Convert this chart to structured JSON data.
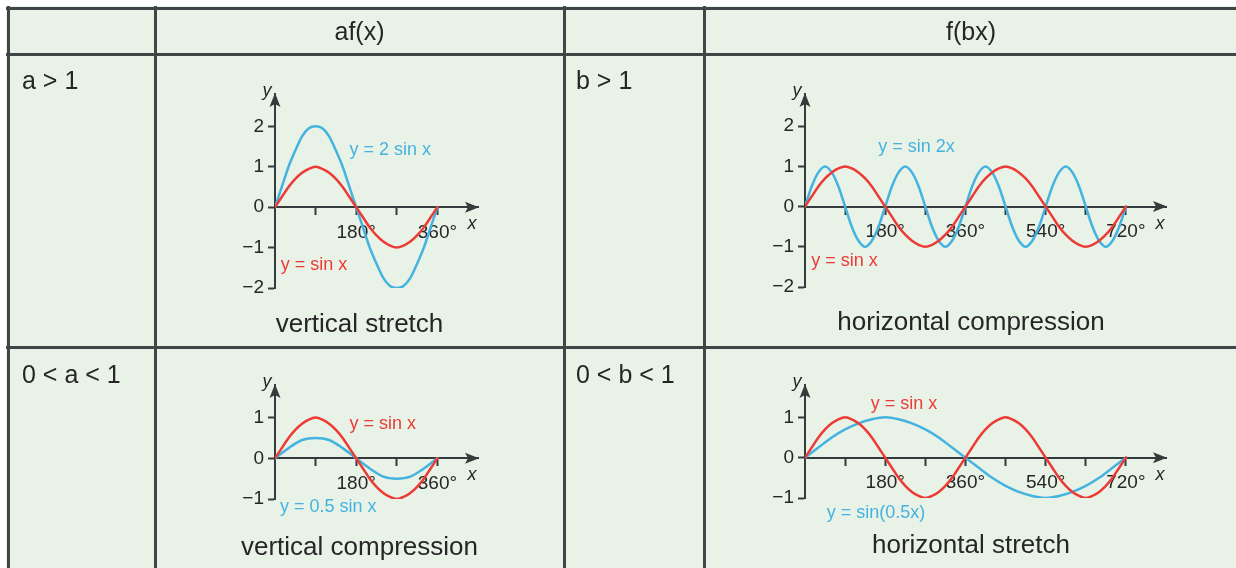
{
  "chart_data": [
    {
      "type": "line",
      "title": "af(x)",
      "annotations": [
        "a > 1",
        "vertical stretch"
      ],
      "xlabel": "x",
      "ylabel": "y",
      "x": [
        0,
        15,
        30,
        45,
        60,
        75,
        90,
        105,
        120,
        135,
        150,
        165,
        180,
        195,
        210,
        225,
        240,
        255,
        270,
        285,
        300,
        315,
        330,
        345,
        360
      ],
      "series": [
        {
          "name": "y = sin x",
          "color": "#ec3b35",
          "values": [
            0,
            0.25,
            0.5,
            0.7,
            0.85,
            0.95,
            1,
            0.95,
            0.85,
            0.7,
            0.5,
            0.25,
            0,
            -0.25,
            -0.5,
            -0.7,
            -0.85,
            -0.95,
            -1,
            -0.95,
            -0.85,
            -0.7,
            -0.5,
            -0.25,
            0
          ]
        },
        {
          "name": "y = 2 sin x",
          "color": "#45b3e0",
          "values": [
            0,
            0.5,
            1,
            1.4,
            1.75,
            1.95,
            2,
            1.95,
            1.75,
            1.4,
            1,
            0.5,
            0,
            -0.5,
            -1,
            -1.4,
            -1.75,
            -1.95,
            -2,
            -1.95,
            -1.75,
            -1.4,
            -1,
            -0.5,
            0
          ]
        }
      ],
      "xlim": [
        0,
        450
      ],
      "ylim": [
        -2,
        2.8
      ],
      "xticks": [
        {
          "value": 90,
          "label": null
        },
        {
          "value": 180,
          "label": "180°"
        },
        {
          "value": 270,
          "label": null
        },
        {
          "value": 360,
          "label": "360°"
        }
      ],
      "yticks": [
        -2,
        -1,
        0,
        1,
        2
      ]
    },
    {
      "type": "line",
      "title": "f(bx)",
      "annotations": [
        "b > 1",
        "horizontal compression"
      ],
      "xlabel": "x",
      "ylabel": "y",
      "x": [
        0,
        15,
        30,
        45,
        60,
        75,
        90,
        105,
        120,
        135,
        150,
        165,
        180,
        195,
        210,
        225,
        240,
        255,
        270,
        285,
        300,
        315,
        330,
        345,
        360,
        375,
        390,
        405,
        420,
        435,
        450,
        465,
        480,
        495,
        510,
        525,
        540,
        555,
        570,
        585,
        600,
        615,
        630,
        645,
        660,
        675,
        690,
        705,
        720
      ],
      "series": [
        {
          "name": "y = sin x",
          "color": "#ec3b35",
          "values": [
            0,
            0.25,
            0.5,
            0.7,
            0.85,
            0.95,
            1,
            0.95,
            0.85,
            0.7,
            0.5,
            0.25,
            0,
            -0.25,
            -0.5,
            -0.7,
            -0.85,
            -0.95,
            -1,
            -0.95,
            -0.85,
            -0.7,
            -0.5,
            -0.25,
            0,
            0.25,
            0.5,
            0.7,
            0.85,
            0.95,
            1,
            0.95,
            0.85,
            0.7,
            0.5,
            0.25,
            0,
            -0.25,
            -0.5,
            -0.7,
            -0.85,
            -0.95,
            -1,
            -0.95,
            -0.85,
            -0.7,
            -0.5,
            -0.25,
            0
          ]
        },
        {
          "name": "y = sin 2x",
          "color": "#45b3e0",
          "values": [
            0,
            0.5,
            0.85,
            1,
            0.85,
            0.5,
            0,
            -0.5,
            -0.85,
            -1,
            -0.85,
            -0.5,
            0,
            0.5,
            0.85,
            1,
            0.85,
            0.5,
            0,
            -0.5,
            -0.85,
            -1,
            -0.85,
            -0.5,
            0,
            0.5,
            0.85,
            1,
            0.85,
            0.5,
            0,
            -0.5,
            -0.85,
            -1,
            -0.85,
            -0.5,
            0,
            0.5,
            0.85,
            1,
            0.85,
            0.5,
            0,
            -0.5,
            -0.85,
            -1,
            -0.85,
            -0.5,
            0
          ]
        }
      ],
      "xlim": [
        0,
        810
      ],
      "ylim": [
        -2,
        2.8
      ],
      "xticks": [
        {
          "value": 90,
          "label": null
        },
        {
          "value": 180,
          "label": "180°"
        },
        {
          "value": 270,
          "label": null
        },
        {
          "value": 360,
          "label": "360°"
        },
        {
          "value": 450,
          "label": null
        },
        {
          "value": 540,
          "label": "540°"
        },
        {
          "value": 630,
          "label": null
        },
        {
          "value": 720,
          "label": "720°"
        }
      ],
      "yticks": [
        -2,
        -1,
        0,
        1,
        2
      ]
    },
    {
      "type": "line",
      "annotations": [
        "0 < a < 1",
        "vertical compression"
      ],
      "xlabel": "x",
      "ylabel": "y",
      "x": [
        0,
        15,
        30,
        45,
        60,
        75,
        90,
        105,
        120,
        135,
        150,
        165,
        180,
        195,
        210,
        225,
        240,
        255,
        270,
        285,
        300,
        315,
        330,
        345,
        360
      ],
      "series": [
        {
          "name": "y = sin x",
          "color": "#ec3b35",
          "values": [
            0,
            0.25,
            0.5,
            0.7,
            0.85,
            0.95,
            1,
            0.95,
            0.85,
            0.7,
            0.5,
            0.25,
            0,
            -0.25,
            -0.5,
            -0.7,
            -0.85,
            -0.95,
            -1,
            -0.95,
            -0.85,
            -0.7,
            -0.5,
            -0.25,
            0
          ]
        },
        {
          "name": "y = 0.5 sin x",
          "color": "#45b3e0",
          "x": [
            0,
            30,
            60,
            90,
            120,
            150,
            180,
            210,
            240,
            270,
            300,
            330,
            360
          ],
          "values": [
            0,
            0.25,
            0.45,
            0.5,
            0.45,
            0.25,
            0,
            -0.25,
            -0.45,
            -0.5,
            -0.45,
            -0.25,
            0
          ]
        }
      ],
      "xlim": [
        0,
        450
      ],
      "ylim": [
        -1,
        1.8
      ],
      "xticks": [
        {
          "value": 90,
          "label": null
        },
        {
          "value": 180,
          "label": "180°"
        },
        {
          "value": 270,
          "label": null
        },
        {
          "value": 360,
          "label": "360°"
        }
      ],
      "yticks": [
        -1,
        0,
        1
      ]
    },
    {
      "type": "line",
      "annotations": [
        "0 < b < 1",
        "horizontal stretch"
      ],
      "xlabel": "x",
      "ylabel": "y",
      "x": [
        0,
        15,
        30,
        45,
        60,
        75,
        90,
        105,
        120,
        135,
        150,
        165,
        180,
        195,
        210,
        225,
        240,
        255,
        270,
        285,
        300,
        315,
        330,
        345,
        360,
        375,
        390,
        405,
        420,
        435,
        450,
        465,
        480,
        495,
        510,
        525,
        540,
        555,
        570,
        585,
        600,
        615,
        630,
        645,
        660,
        675,
        690,
        705,
        720
      ],
      "series": [
        {
          "name": "y = sin x",
          "color": "#ec3b35",
          "values": [
            0,
            0.25,
            0.5,
            0.7,
            0.85,
            0.95,
            1,
            0.95,
            0.85,
            0.7,
            0.5,
            0.25,
            0,
            -0.25,
            -0.5,
            -0.7,
            -0.85,
            -0.95,
            -1,
            -0.95,
            -0.85,
            -0.7,
            -0.5,
            -0.25,
            0,
            0.25,
            0.5,
            0.7,
            0.85,
            0.95,
            1,
            0.95,
            0.85,
            0.7,
            0.5,
            0.25,
            0,
            -0.25,
            -0.5,
            -0.7,
            -0.85,
            -0.95,
            -1,
            -0.95,
            -0.85,
            -0.7,
            -0.5,
            -0.25,
            0
          ]
        },
        {
          "name": "y = sin(0.5x)",
          "color": "#45b3e0",
          "x": [
            0,
            30,
            60,
            90,
            120,
            150,
            180,
            210,
            240,
            270,
            300,
            330,
            360,
            390,
            420,
            450,
            480,
            510,
            540,
            570,
            600,
            630,
            660,
            690,
            720
          ],
          "values": [
            0,
            0.25,
            0.5,
            0.7,
            0.85,
            0.95,
            1,
            0.95,
            0.85,
            0.7,
            0.5,
            0.25,
            0,
            -0.25,
            -0.5,
            -0.7,
            -0.85,
            -0.95,
            -1,
            -0.95,
            -0.85,
            -0.7,
            -0.5,
            -0.25,
            0
          ]
        }
      ],
      "xlim": [
        0,
        810
      ],
      "ylim": [
        -1,
        1.8
      ],
      "xticks": [
        {
          "value": 90,
          "label": null
        },
        {
          "value": 180,
          "label": "180°"
        },
        {
          "value": 270,
          "label": null
        },
        {
          "value": 360,
          "label": "360°"
        },
        {
          "value": 450,
          "label": null
        },
        {
          "value": 540,
          "label": "540°"
        },
        {
          "value": 630,
          "label": null
        },
        {
          "value": 720,
          "label": "720°"
        }
      ],
      "yticks": [
        -1,
        0,
        1
      ]
    }
  ]
}
